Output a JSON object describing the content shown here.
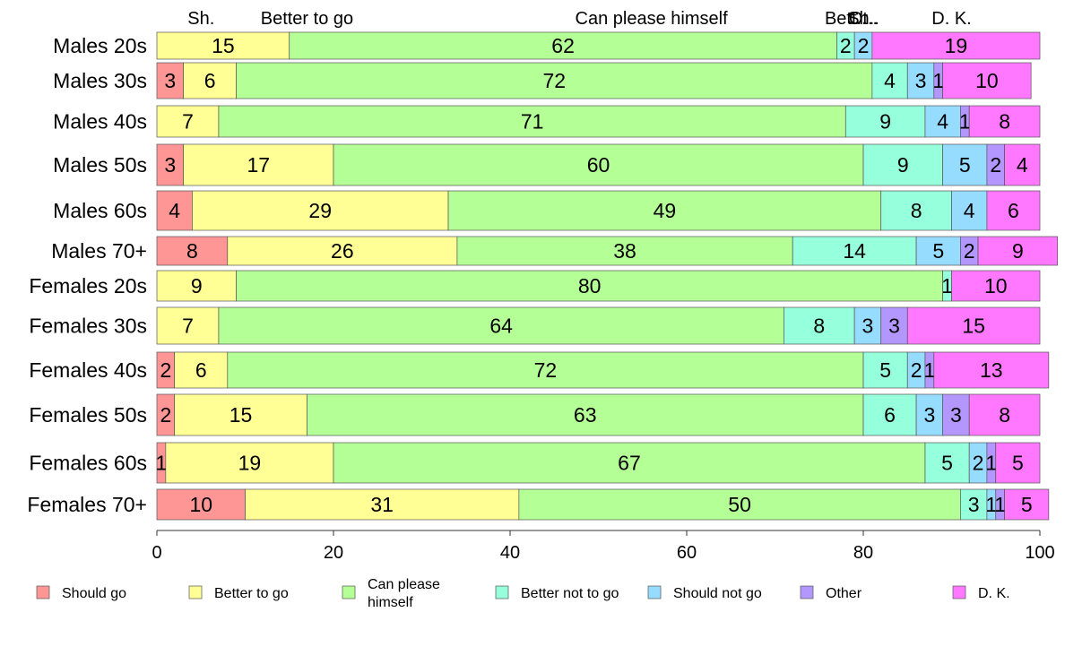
{
  "chart_data": {
    "type": "bar",
    "orientation": "horizontal",
    "stacked": true,
    "categories": [
      "Males 20s",
      "Males 30s",
      "Males 40s",
      "Males 50s",
      "Males 60s",
      "Males 70+",
      "Females 20s",
      "Females 30s",
      "Females 40s",
      "Females 50s",
      "Females 60s",
      "Females 70+"
    ],
    "series": [
      {
        "name": "Should go",
        "color": "#ff9696",
        "values": [
          0,
          3,
          0,
          3,
          4,
          8,
          0,
          0,
          2,
          2,
          1,
          10
        ]
      },
      {
        "name": "Better to go",
        "color": "#ffff96",
        "values": [
          15,
          6,
          7,
          17,
          29,
          26,
          9,
          7,
          6,
          15,
          19,
          31
        ]
      },
      {
        "name": "Can please himself",
        "color": "#b4ff96",
        "values": [
          62,
          72,
          71,
          60,
          49,
          38,
          80,
          64,
          72,
          63,
          67,
          50
        ]
      },
      {
        "name": "Better not to go",
        "color": "#96ffdc",
        "values": [
          2,
          4,
          9,
          9,
          8,
          14,
          1,
          8,
          5,
          6,
          5,
          3
        ]
      },
      {
        "name": "Should not go",
        "color": "#96dcff",
        "values": [
          2,
          3,
          4,
          5,
          4,
          5,
          0,
          3,
          2,
          3,
          2,
          1
        ]
      },
      {
        "name": "Other",
        "color": "#b496ff",
        "values": [
          0,
          1,
          1,
          2,
          0,
          2,
          0,
          3,
          1,
          3,
          1,
          1
        ]
      },
      {
        "name": "D. K.",
        "color": "#ff78ff",
        "values": [
          19,
          10,
          8,
          4,
          6,
          9,
          10,
          15,
          13,
          8,
          5,
          5
        ]
      }
    ],
    "top_labels": [
      "Sh.",
      "Better to go",
      "Can please himself",
      "Bett..",
      "Sh..",
      "Ot..",
      "D. K."
    ],
    "legend_labels": [
      "Should go",
      "Better to go",
      "Can please himself",
      "Better not to go",
      "Should not go",
      "Other",
      "D. K."
    ],
    "legend_placement": "bottom",
    "xlim": [
      0,
      100
    ],
    "xticks": [
      0,
      20,
      40,
      60,
      80,
      100
    ],
    "grid": false
  }
}
